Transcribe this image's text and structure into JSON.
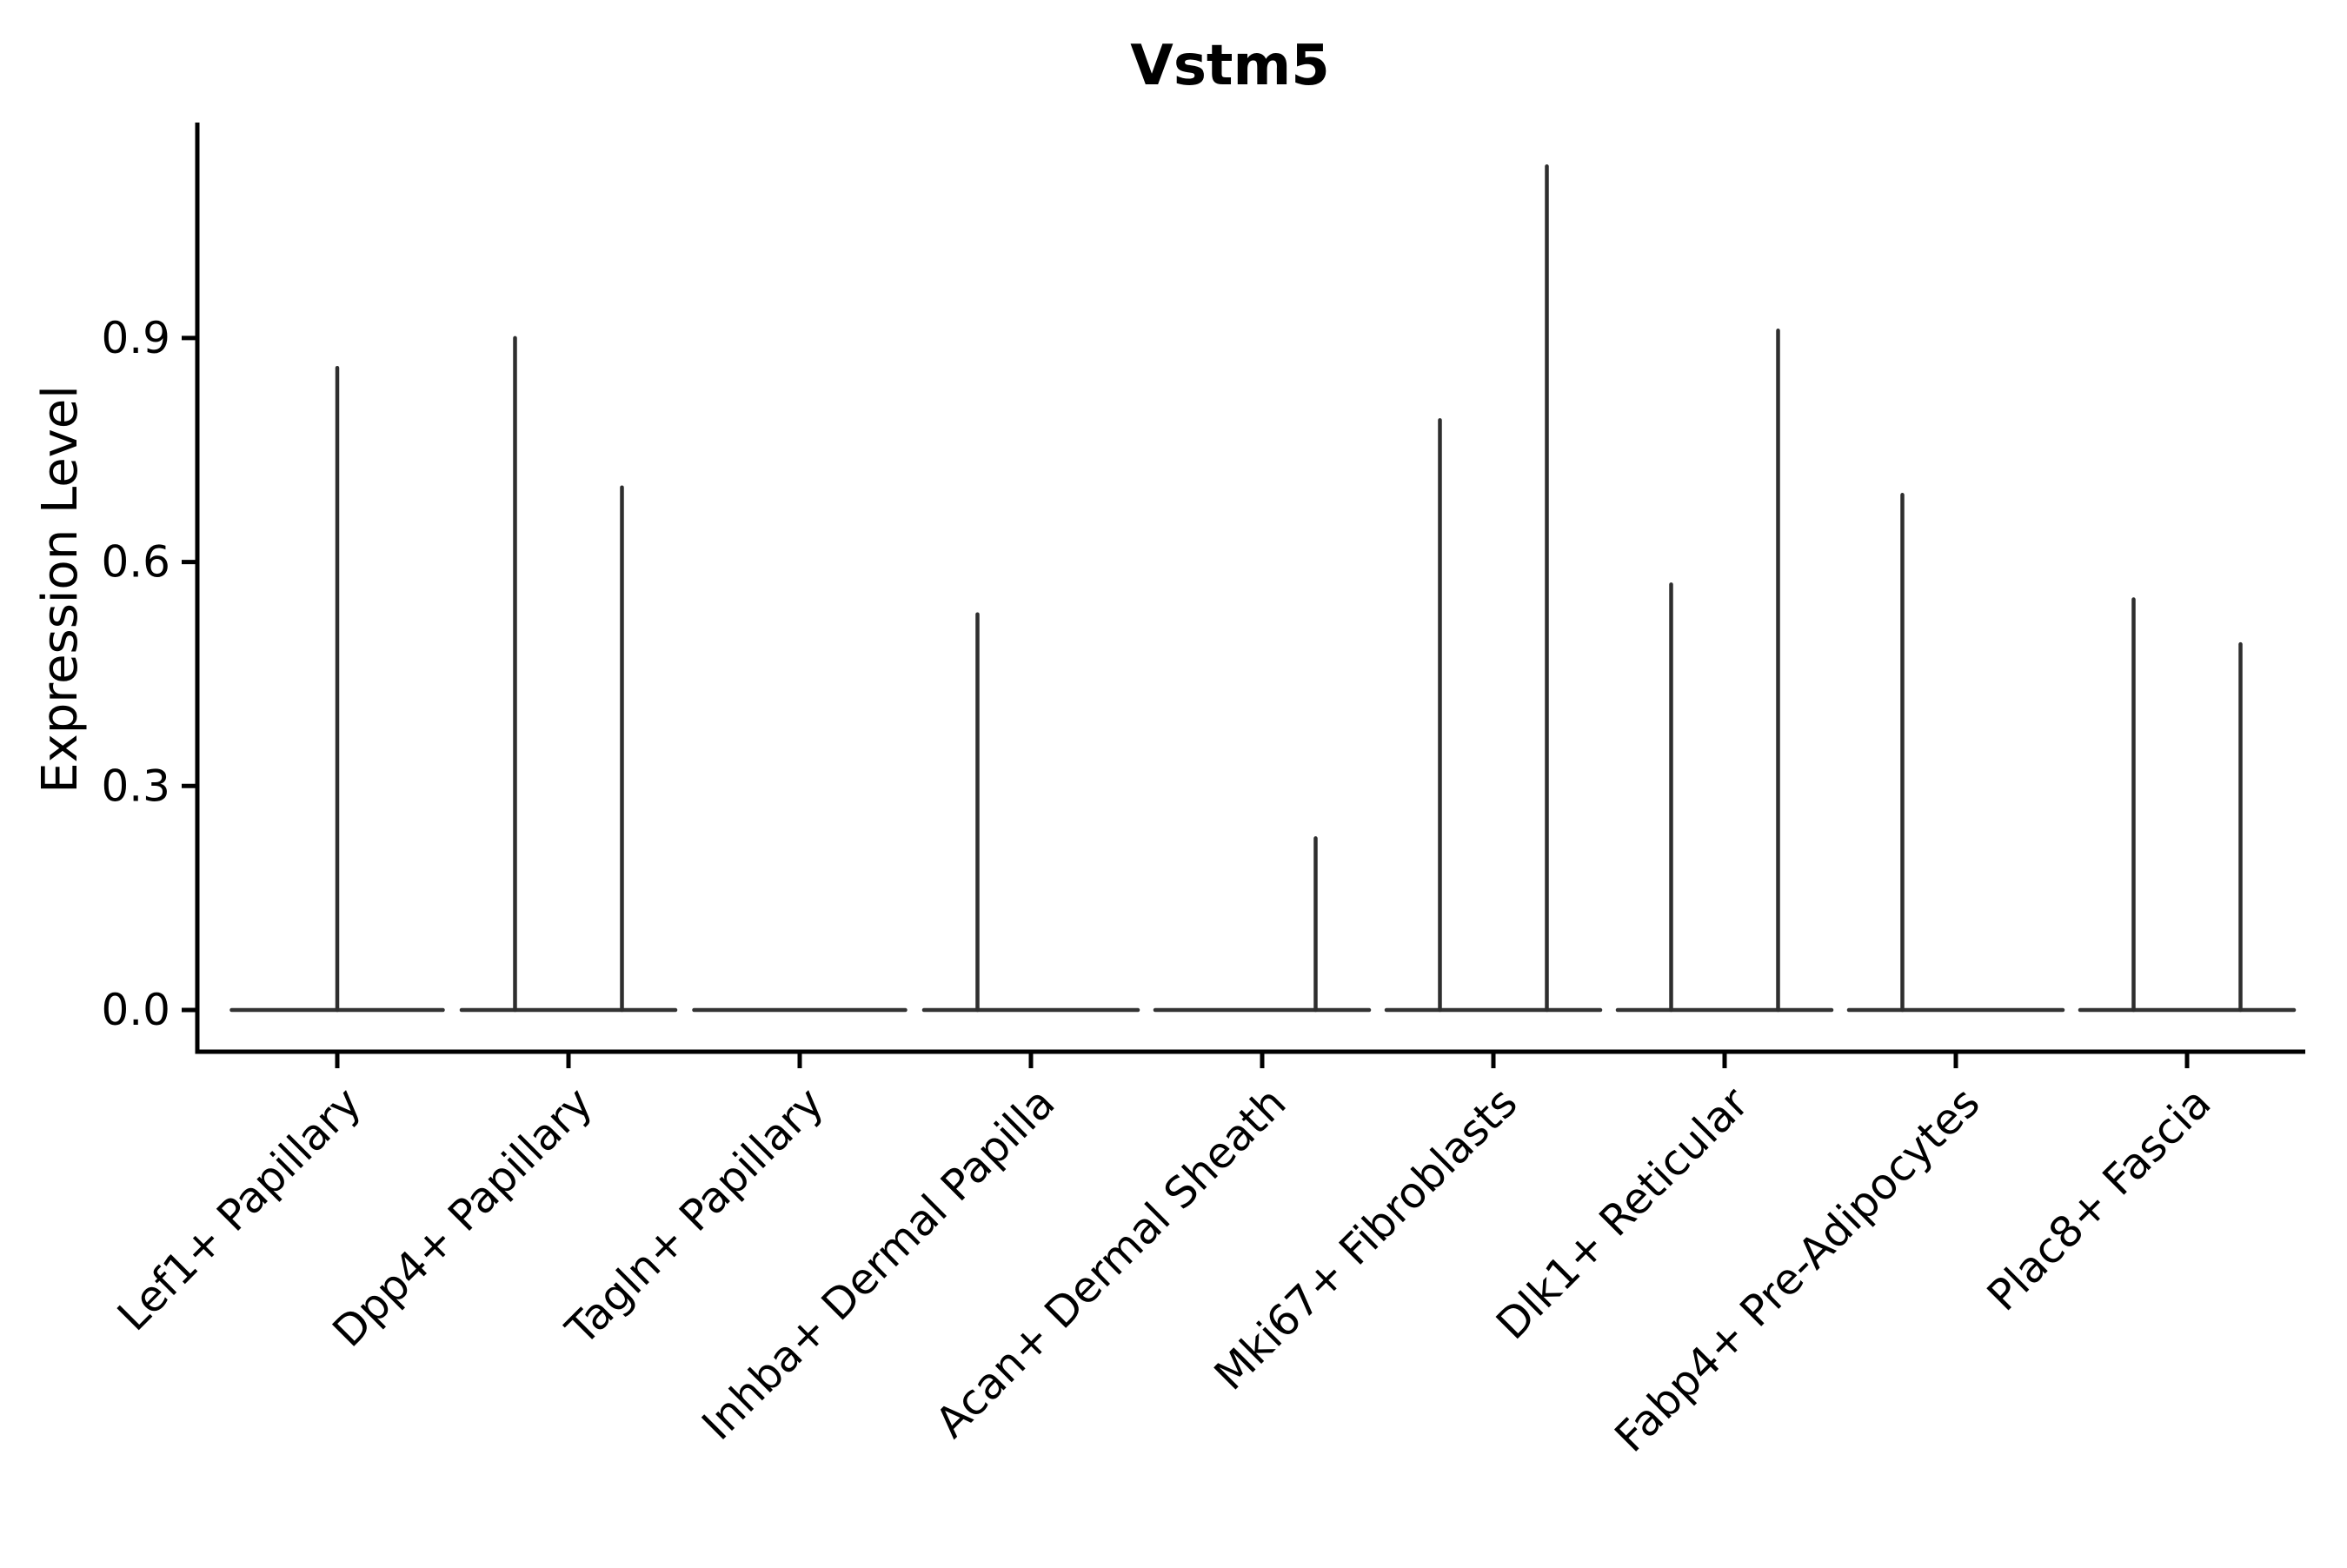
{
  "chart_data": {
    "type": "violin",
    "title": "Vstm5",
    "xlabel": "",
    "ylabel": "Expression Level",
    "yticks": [
      0.0,
      0.3,
      0.6,
      0.9
    ],
    "ytick_labels": [
      "0.0",
      "0.3",
      "0.6",
      "0.9"
    ],
    "ylim": [
      -0.06,
      1.19
    ],
    "grid": false,
    "legend": "none",
    "violin_style": "collapsed-spike (flat base at 0 with thin spike to max value)",
    "categories": [
      "Lef1+ Papillary",
      "Dpp4+ Papillary",
      "Tagln+ Papillary",
      "Inhba+ Dermal Papilla",
      "Acan+ Dermal Sheath",
      "Mki67+ Fibroblasts",
      "Dlk1+ Reticular",
      "Fabp4+ Pre-Adipocytes",
      "Plac8+ Fascia"
    ],
    "violins": [
      {
        "category": "Lef1+ Papillary",
        "groups": [
          {
            "max_expression": 0.86
          }
        ]
      },
      {
        "category": "Dpp4+ Papillary",
        "groups": [
          {
            "max_expression": 0.9
          },
          {
            "max_expression": 0.7
          }
        ]
      },
      {
        "category": "Tagln+ Papillary",
        "groups": [
          {
            "max_expression": 0.0
          }
        ]
      },
      {
        "category": "Inhba+ Dermal Papilla",
        "groups": [
          {
            "max_expression": 0.53
          },
          {
            "max_expression": 0.0
          }
        ]
      },
      {
        "category": "Acan+ Dermal Sheath",
        "groups": [
          {
            "max_expression": 0.0
          },
          {
            "max_expression": 0.23
          }
        ]
      },
      {
        "category": "Mki67+ Fibroblasts",
        "groups": [
          {
            "max_expression": 0.79
          },
          {
            "max_expression": 1.13
          }
        ]
      },
      {
        "category": "Dlk1+ Reticular",
        "groups": [
          {
            "max_expression": 0.57
          },
          {
            "max_expression": 0.91
          }
        ]
      },
      {
        "category": "Fabp4+ Pre-Adipocytes",
        "groups": [
          {
            "max_expression": 0.69
          },
          {
            "max_expression": 0.0
          }
        ]
      },
      {
        "category": "Plac8+ Fascia",
        "groups": [
          {
            "max_expression": 0.55
          },
          {
            "max_expression": 0.49
          }
        ]
      }
    ],
    "colors": {
      "violin_stroke": "#2e2e2e",
      "baseline": "#333333",
      "spine": "#000000",
      "text": "#000000",
      "background": "#ffffff"
    }
  }
}
